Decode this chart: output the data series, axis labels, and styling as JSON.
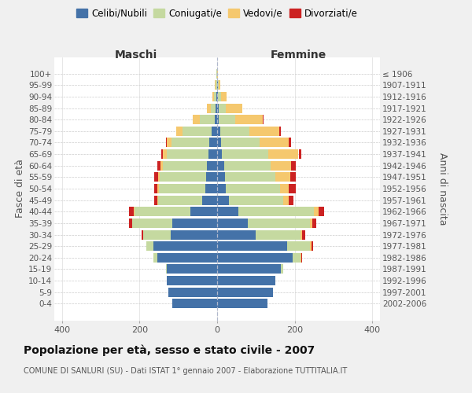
{
  "age_groups": [
    "0-4",
    "5-9",
    "10-14",
    "15-19",
    "20-24",
    "25-29",
    "30-34",
    "35-39",
    "40-44",
    "45-49",
    "50-54",
    "55-59",
    "60-64",
    "65-69",
    "70-74",
    "75-79",
    "80-84",
    "85-89",
    "90-94",
    "95-99",
    "100+"
  ],
  "birth_years": [
    "2002-2006",
    "1997-2001",
    "1992-1996",
    "1987-1991",
    "1982-1986",
    "1977-1981",
    "1972-1976",
    "1967-1971",
    "1962-1966",
    "1957-1961",
    "1952-1956",
    "1947-1951",
    "1942-1946",
    "1937-1941",
    "1932-1936",
    "1927-1931",
    "1922-1926",
    "1917-1921",
    "1912-1916",
    "1907-1911",
    "≤ 1906"
  ],
  "male_celibi": [
    115,
    125,
    130,
    130,
    155,
    165,
    120,
    115,
    68,
    38,
    30,
    28,
    26,
    22,
    20,
    15,
    6,
    4,
    2,
    1,
    1
  ],
  "male_coniugati": [
    0,
    0,
    0,
    2,
    10,
    18,
    70,
    105,
    145,
    115,
    120,
    120,
    115,
    108,
    98,
    75,
    38,
    12,
    6,
    3,
    1
  ],
  "male_vedovi": [
    0,
    0,
    0,
    0,
    0,
    0,
    0,
    0,
    2,
    2,
    4,
    5,
    6,
    10,
    12,
    15,
    18,
    10,
    4,
    2,
    0
  ],
  "male_divorziati": [
    0,
    0,
    0,
    0,
    0,
    0,
    5,
    8,
    12,
    8,
    8,
    10,
    8,
    5,
    2,
    0,
    0,
    0,
    0,
    0,
    0
  ],
  "female_nubili": [
    130,
    145,
    150,
    165,
    195,
    180,
    100,
    80,
    55,
    30,
    22,
    20,
    18,
    12,
    10,
    8,
    4,
    4,
    2,
    2,
    1
  ],
  "female_coniugate": [
    0,
    0,
    0,
    5,
    20,
    60,
    115,
    160,
    195,
    140,
    140,
    130,
    120,
    120,
    100,
    75,
    42,
    18,
    8,
    2,
    0
  ],
  "female_vedove": [
    0,
    0,
    0,
    0,
    2,
    3,
    5,
    5,
    12,
    15,
    22,
    38,
    52,
    78,
    75,
    78,
    72,
    42,
    15,
    5,
    2
  ],
  "female_divorziate": [
    0,
    0,
    0,
    0,
    2,
    4,
    8,
    10,
    14,
    12,
    18,
    14,
    12,
    8,
    5,
    4,
    2,
    0,
    0,
    0,
    0
  ],
  "color_celibi": "#4472a8",
  "color_coniugati": "#c5d9a0",
  "color_vedovi": "#f5c86e",
  "color_divorziati": "#cc2222",
  "title": "Popolazione per età, sesso e stato civile - 2007",
  "subtitle": "COMUNE DI SANLURI (SU) - Dati ISTAT 1° gennaio 2007 - Elaborazione TUTTITALIA.IT",
  "label_maschi": "Maschi",
  "label_femmine": "Femmine",
  "ylabel_left": "Fasce di età",
  "ylabel_right": "Anni di nascita",
  "legend_labels": [
    "Celibi/Nubili",
    "Coniugati/e",
    "Vedovi/e",
    "Divorziati/e"
  ],
  "xlim": 420,
  "bg_color": "#f0f0f0",
  "plot_bg": "#ffffff"
}
